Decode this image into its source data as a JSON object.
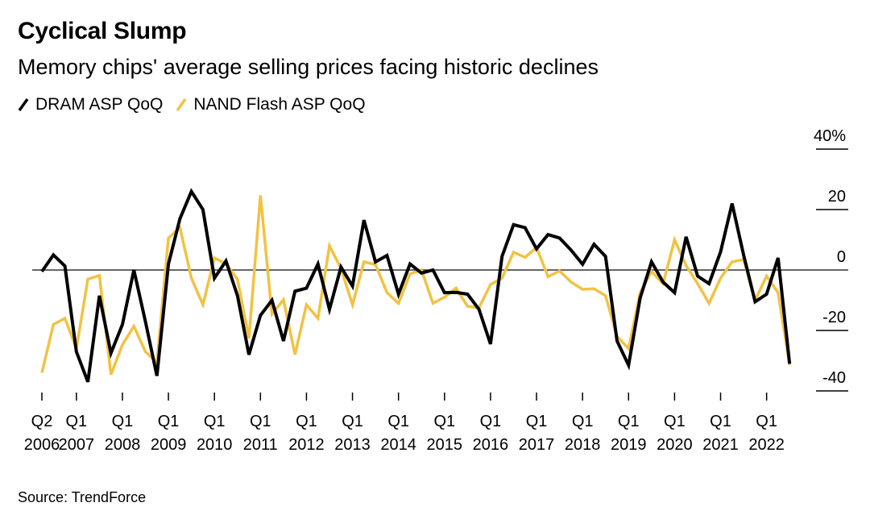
{
  "chart_data": {
    "type": "line",
    "title": "Cyclical Slump",
    "subtitle": "Memory chips' average selling prices facing historic declines",
    "source": "Source: TrendForce",
    "ylim": [
      -40,
      40
    ],
    "yticks": [
      40,
      20,
      0,
      -20,
      -40
    ],
    "ytick_labels": [
      "40%",
      "20",
      "0",
      "-20",
      "-40"
    ],
    "xtick_labels": [
      {
        "q": "Q2",
        "year": "2006"
      },
      {
        "q": "Q1",
        "year": "2007"
      },
      {
        "q": "Q1",
        "year": "2008"
      },
      {
        "q": "Q1",
        "year": "2009"
      },
      {
        "q": "Q1",
        "year": "2010"
      },
      {
        "q": "Q1",
        "year": "2011"
      },
      {
        "q": "Q1",
        "year": "2012"
      },
      {
        "q": "Q1",
        "year": "2013"
      },
      {
        "q": "Q1",
        "year": "2014"
      },
      {
        "q": "Q1",
        "year": "2015"
      },
      {
        "q": "Q1",
        "year": "2016"
      },
      {
        "q": "Q1",
        "year": "2017"
      },
      {
        "q": "Q1",
        "year": "2018"
      },
      {
        "q": "Q1",
        "year": "2019"
      },
      {
        "q": "Q1",
        "year": "2020"
      },
      {
        "q": "Q1",
        "year": "2021"
      },
      {
        "q": "Q1",
        "year": "2022"
      }
    ],
    "xtick_quarter_index": [
      0,
      3,
      7,
      11,
      15,
      19,
      23,
      27,
      31,
      35,
      39,
      43,
      47,
      51,
      55,
      59,
      63
    ],
    "x_start": "Q2 2006",
    "x_end": "Q3 2022",
    "grid": "horizontal-right-stubs",
    "legend_placement": "top-left",
    "series": [
      {
        "name": "DRAM ASP QoQ",
        "color": "#000000",
        "values": [
          -0.5,
          5,
          1.3,
          -27,
          -37,
          -8.5,
          -27.5,
          -18,
          0,
          -17,
          -35,
          2,
          17,
          26,
          20,
          -2.7,
          3,
          -8.5,
          -28,
          -15,
          -10,
          -23.5,
          -7,
          -6,
          2,
          -13,
          1,
          -5.3,
          16.5,
          2.7,
          4.8,
          -8,
          2,
          -1,
          0,
          -7.5,
          -7.4,
          -8,
          -13,
          -24.5,
          4.5,
          15,
          14,
          7,
          11.7,
          10.6,
          6.6,
          1.9,
          8.5,
          4.5,
          -23.5,
          -31.5,
          -9.3,
          2.7,
          -4,
          -7.5,
          11,
          -2,
          -4.5,
          6,
          22,
          5,
          -10.5,
          -8,
          4,
          -31
        ]
      },
      {
        "name": "NAND Flash ASP QoQ",
        "color": "#f2c242",
        "values": [
          -34,
          -18,
          -16,
          -26,
          -3,
          -1.8,
          -34.6,
          -24.7,
          -18.6,
          -27,
          -30.6,
          10.6,
          14,
          -2.7,
          -11.5,
          4,
          2,
          -3,
          -22.6,
          24.7,
          -14.6,
          -9.8,
          -28,
          -11.5,
          -16,
          8,
          0.5,
          -11.5,
          2.7,
          1.8,
          -7.5,
          -11,
          -1.3,
          0,
          -11,
          -9,
          -6,
          -12,
          -12.5,
          -4.8,
          -2.7,
          5.9,
          4.2,
          7.5,
          -2.2,
          -0.3,
          -4,
          -6.4,
          -6.2,
          -8.5,
          -22,
          -26,
          -7.5,
          -0.5,
          -4.5,
          10,
          1.5,
          -4.5,
          -11,
          -2.7,
          2.7,
          3.5,
          -10,
          -2,
          -7.5,
          -31.4
        ]
      }
    ]
  }
}
